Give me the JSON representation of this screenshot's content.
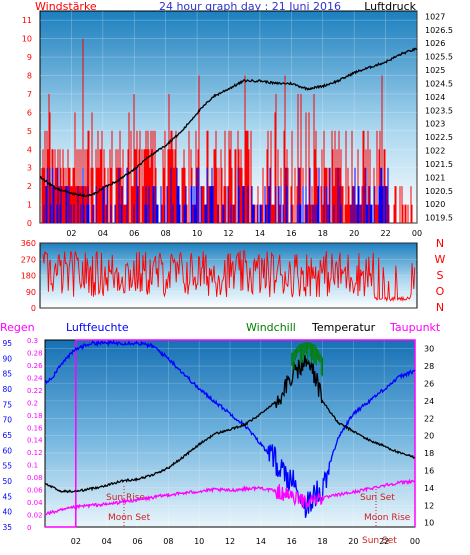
{
  "title": "24 hour graph day : 21 Juni 2016",
  "colors": {
    "title": "#3333cc",
    "wind_gust": "#ff0000",
    "wind_avg": "#0000ff",
    "pressure": "#000000",
    "winddir": "#ff0000",
    "humidity": "#0000ff",
    "temperature": "#000000",
    "windchill": "#008000",
    "dewpoint": "#ff00ff",
    "regen": "#ff00ff",
    "text_red": "#ff0000",
    "text_dark": "#000000"
  },
  "chart_data": [
    {
      "type": "line",
      "name": "wind-pressure",
      "left_label": "Windstärke",
      "right_label": "Luftdruck",
      "x_ticks": [
        "02",
        "04",
        "06",
        "08",
        "10",
        "12",
        "14",
        "16",
        "18",
        "20",
        "22",
        "00"
      ],
      "y_left_ticks": [
        "0",
        "1",
        "2",
        "3",
        "4",
        "5",
        "6",
        "7",
        "8",
        "9",
        "10",
        "11"
      ],
      "y_left_lim": [
        0,
        11.5
      ],
      "y_right_ticks": [
        "1019.5",
        "1020",
        "1020.5",
        "1021",
        "1021.5",
        "1022",
        "1022.5",
        "1023",
        "1023.5",
        "1024",
        "1024.5",
        "1025",
        "1025.5",
        "1026",
        "1026.5",
        "1027"
      ],
      "y_right_lim": [
        1019.3,
        1027.2
      ],
      "pressure": {
        "x": [
          0,
          1,
          2,
          3,
          3.5,
          4,
          5,
          6,
          7,
          8,
          9,
          10,
          11,
          12,
          13,
          14,
          15,
          16,
          17,
          18,
          19,
          20,
          21,
          22,
          23,
          24
        ],
        "y": [
          1021.0,
          1020.6,
          1020.4,
          1020.3,
          1020.4,
          1020.6,
          1020.9,
          1021.3,
          1021.8,
          1022.2,
          1022.7,
          1023.4,
          1024.0,
          1024.3,
          1024.6,
          1024.6,
          1024.5,
          1024.5,
          1024.3,
          1024.4,
          1024.6,
          1024.9,
          1025.1,
          1025.3,
          1025.6,
          1025.8
        ]
      }
    },
    {
      "type": "line",
      "name": "wind-direction",
      "y_left_ticks": [
        "0",
        "90",
        "180",
        "270",
        "360"
      ],
      "y_lim": [
        0,
        360
      ],
      "compass_labels": [
        "N",
        "W",
        "S",
        "O",
        "N"
      ]
    },
    {
      "type": "line",
      "name": "humidity-temperature",
      "headers": [
        "Regen",
        "Luftfeuchte",
        "Windchill",
        "Temperatur",
        "Taupunkt"
      ],
      "x_ticks": [
        "02",
        "04",
        "06",
        "08",
        "10",
        "12",
        "14",
        "16",
        "18",
        "20",
        "22",
        "00"
      ],
      "regen_ticks": [
        "0",
        "0.02",
        "0.04",
        "0.06",
        "0.08",
        "0.1",
        "0.12",
        "0.14",
        "0.16",
        "0.18",
        "0.2",
        "0.22",
        "0.24",
        "0.26",
        "0.28",
        "0.3"
      ],
      "humidity_ticks": [
        "35",
        "40",
        "45",
        "50",
        "55",
        "60",
        "65",
        "70",
        "75",
        "80",
        "85",
        "90",
        "95"
      ],
      "humidity_lim": [
        35,
        96
      ],
      "temp_ticks": [
        "10",
        "12",
        "14",
        "16",
        "18",
        "20",
        "22",
        "24",
        "26",
        "28",
        "30"
      ],
      "temp_lim": [
        9.5,
        31
      ],
      "annotations": [
        "Sun Rise",
        "Sun Set",
        "Moon Set",
        "Moon Rise",
        "Sun Set"
      ],
      "humidity": {
        "x": [
          0,
          0.5,
          1,
          2,
          3,
          4,
          5,
          6,
          7,
          8,
          9,
          10,
          11,
          12,
          13,
          14,
          15,
          16,
          17,
          18,
          19,
          20,
          21,
          22,
          23,
          24
        ],
        "y": [
          82,
          84,
          88,
          93,
          95,
          95,
          95,
          95,
          94,
          90,
          85,
          80,
          76,
          72,
          68,
          62,
          56,
          50,
          42,
          48,
          64,
          72,
          76,
          80,
          84,
          86
        ]
      },
      "temperature": {
        "x": [
          0,
          1,
          2,
          3,
          4,
          5,
          6,
          7,
          8,
          9,
          10,
          11,
          12,
          13,
          14,
          15,
          16,
          17,
          17.5,
          18,
          19,
          20,
          21,
          22,
          23,
          24
        ],
        "y": [
          14.5,
          13.6,
          13.6,
          13.9,
          14.3,
          14.8,
          15.0,
          15.5,
          16.3,
          17.6,
          19.0,
          20.2,
          20.7,
          21.3,
          22.5,
          24.0,
          27.0,
          28.5,
          27.0,
          24.0,
          21.5,
          20.5,
          19.5,
          18.8,
          18.0,
          17.5
        ]
      },
      "dewpoint": {
        "x": [
          0,
          1,
          2,
          3,
          4,
          5,
          6,
          7,
          8,
          9,
          10,
          11,
          12,
          13,
          14,
          15,
          16,
          17,
          18,
          19,
          20,
          21,
          22,
          23,
          24
        ],
        "y": [
          11.0,
          11.4,
          11.8,
          12.0,
          12.1,
          12.4,
          12.6,
          12.9,
          13.2,
          13.4,
          13.6,
          13.8,
          13.7,
          13.9,
          14.0,
          13.6,
          13.0,
          12.5,
          12.8,
          13.2,
          13.5,
          13.9,
          14.3,
          14.6,
          14.8
        ]
      },
      "windchill": {
        "x": [
          16,
          16.5,
          17,
          17.5,
          18
        ],
        "y": [
          29.5,
          30.5,
          30.8,
          30.5,
          29.0
        ]
      },
      "regen_step": {
        "x": [
          0,
          2,
          2,
          24,
          24
        ],
        "y": [
          0,
          0,
          0.3,
          0.3,
          0
        ]
      }
    }
  ]
}
